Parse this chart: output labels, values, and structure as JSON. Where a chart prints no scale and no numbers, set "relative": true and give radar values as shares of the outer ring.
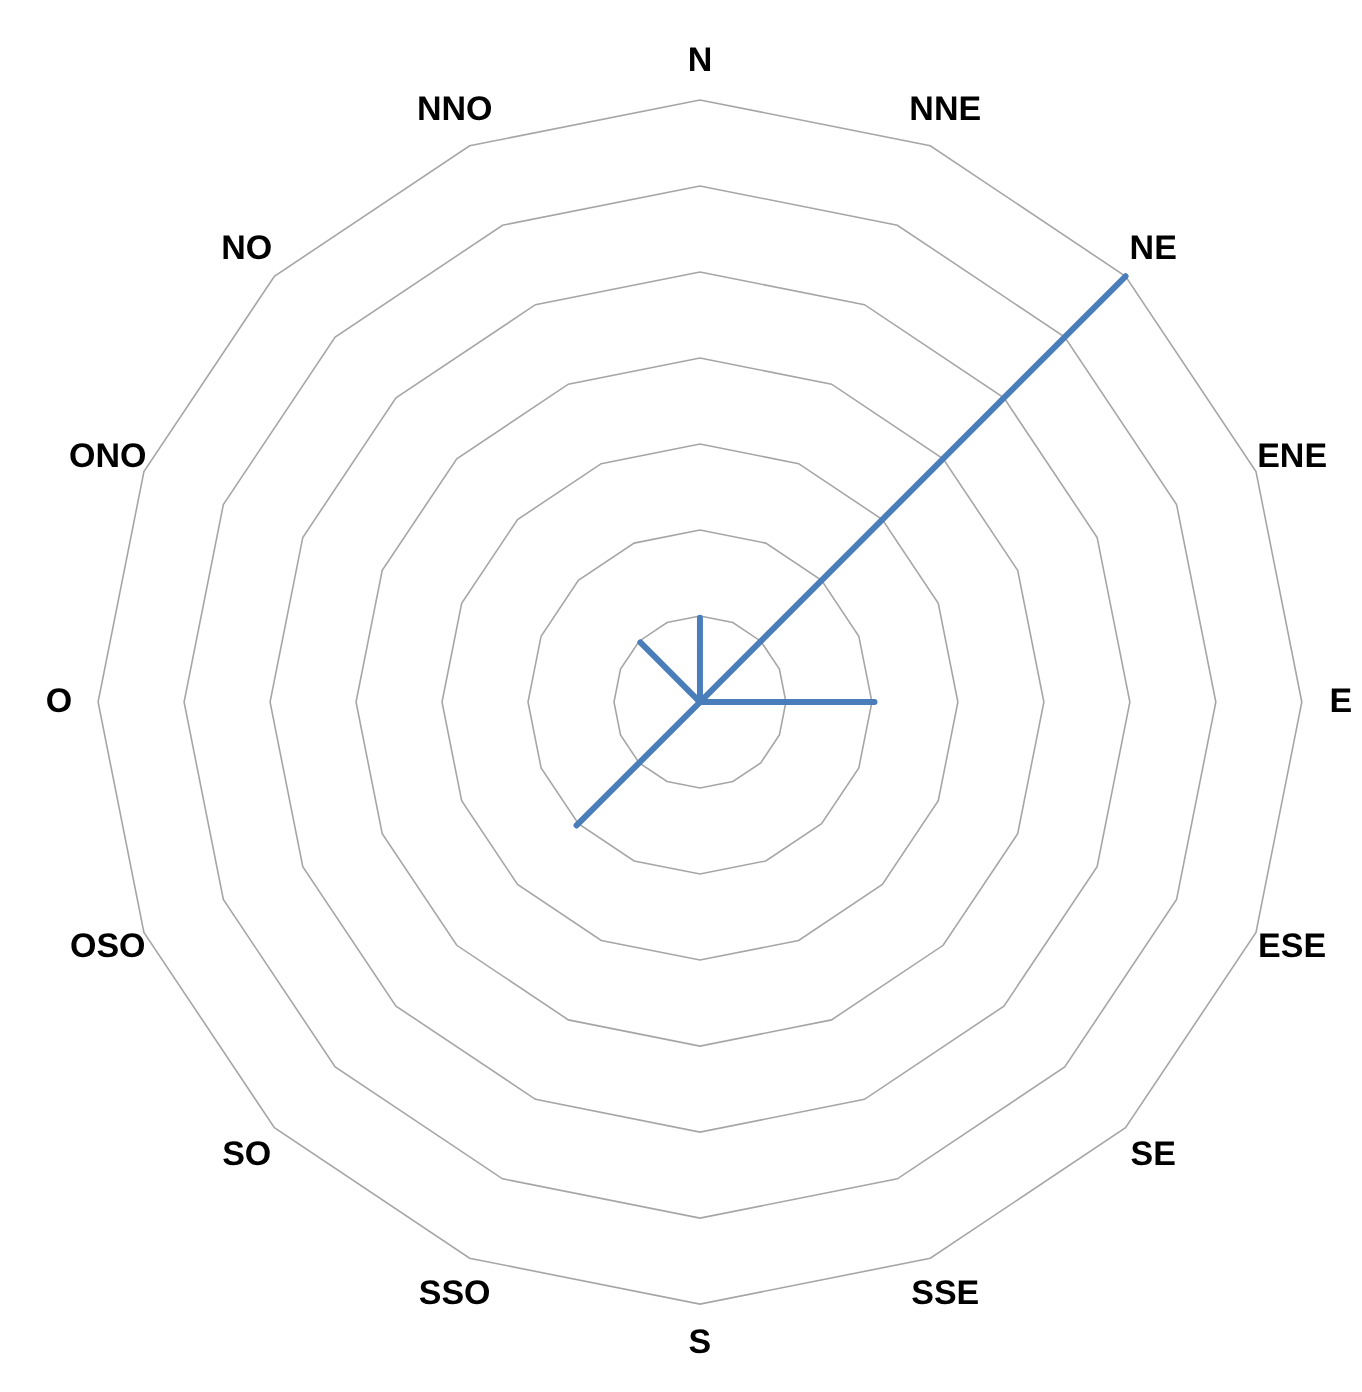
{
  "chart_data": {
    "type": "radar",
    "relative": true,
    "grid": true,
    "categories": [
      "N",
      "NNE",
      "NE",
      "ENE",
      "E",
      "ESE",
      "SE",
      "SSE",
      "S",
      "SSO",
      "SO",
      "OSO",
      "O",
      "ONO",
      "NO",
      "NNO"
    ],
    "series": [
      {
        "color": "#4a7ebb",
        "values": [
          0.14,
          0,
          1,
          0,
          0.29,
          0,
          0,
          0,
          0,
          0,
          0.29,
          0,
          0,
          0,
          0.14,
          0
        ]
      }
    ]
  }
}
